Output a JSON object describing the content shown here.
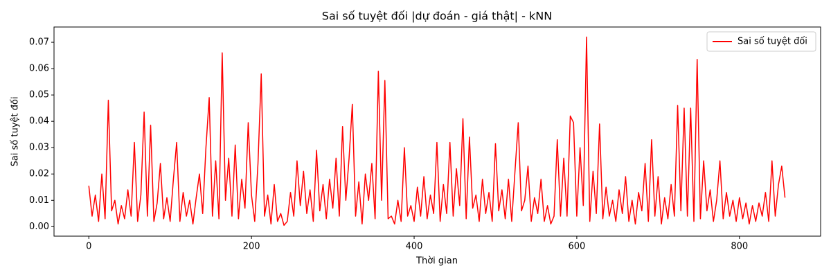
{
  "chart_data": {
    "type": "line",
    "title": "Sai số tuyệt đối |dự đoán - giá thật| - kNN",
    "xlabel": "Thời gian",
    "ylabel": "Sai số tuyệt đối",
    "legend": "upper right",
    "xlim": [
      -42.8,
      899.8
    ],
    "ylim": [
      -0.0036,
      0.0758
    ],
    "xticks": [
      0,
      200,
      400,
      600,
      800
    ],
    "yticks": [
      {
        "value": 0,
        "label": "0.00"
      },
      {
        "value": 0.01,
        "label": "0.01"
      },
      {
        "value": 0.02,
        "label": "0.02"
      },
      {
        "value": 0.03,
        "label": "0.03"
      },
      {
        "value": 0.04,
        "label": "0.04"
      },
      {
        "value": 0.05,
        "label": "0.05"
      },
      {
        "value": 0.06,
        "label": "0.06"
      },
      {
        "value": 0.07,
        "label": "0.07"
      }
    ],
    "x": [
      0,
      4,
      8,
      12,
      16,
      20,
      24,
      28,
      32,
      36,
      40,
      44,
      48,
      52,
      56,
      60,
      64,
      68,
      72,
      76,
      80,
      84,
      88,
      92,
      96,
      100,
      104,
      108,
      112,
      116,
      120,
      124,
      128,
      132,
      136,
      140,
      144,
      148,
      152,
      156,
      160,
      164,
      168,
      172,
      176,
      180,
      184,
      188,
      192,
      196,
      200,
      204,
      208,
      212,
      216,
      220,
      224,
      228,
      232,
      236,
      240,
      244,
      248,
      252,
      256,
      260,
      264,
      268,
      272,
      276,
      280,
      284,
      288,
      292,
      296,
      300,
      304,
      308,
      312,
      316,
      320,
      324,
      328,
      332,
      336,
      340,
      344,
      348,
      352,
      356,
      360,
      364,
      368,
      372,
      376,
      380,
      384,
      388,
      392,
      396,
      400,
      404,
      408,
      412,
      416,
      420,
      424,
      428,
      432,
      436,
      440,
      444,
      448,
      452,
      456,
      460,
      464,
      468,
      472,
      476,
      480,
      484,
      488,
      492,
      496,
      500,
      504,
      508,
      512,
      516,
      520,
      524,
      528,
      532,
      536,
      540,
      544,
      548,
      552,
      556,
      560,
      564,
      568,
      572,
      576,
      580,
      584,
      588,
      592,
      596,
      600,
      604,
      608,
      612,
      616,
      620,
      624,
      628,
      632,
      636,
      640,
      644,
      648,
      652,
      656,
      660,
      664,
      668,
      672,
      676,
      680,
      684,
      688,
      692,
      696,
      700,
      704,
      708,
      712,
      716,
      720,
      724,
      728,
      732,
      736,
      740,
      744,
      748,
      752,
      756,
      760,
      764,
      768,
      772,
      776,
      780,
      784,
      788,
      792,
      796,
      800,
      804,
      808,
      812,
      816,
      820,
      824,
      828,
      832,
      836,
      840,
      844,
      848,
      852,
      856
    ],
    "series": [
      {
        "name": "Sai số tuyệt đối",
        "color": "#ff0000",
        "values": [
          0.0155,
          0.004,
          0.012,
          0.002,
          0.02,
          0.003,
          0.048,
          0.006,
          0.01,
          0.001,
          0.008,
          0.003,
          0.014,
          0.004,
          0.032,
          0.002,
          0.012,
          0.0435,
          0.004,
          0.0385,
          0.002,
          0.009,
          0.024,
          0.003,
          0.011,
          0.002,
          0.018,
          0.032,
          0.002,
          0.013,
          0.004,
          0.01,
          0.001,
          0.011,
          0.02,
          0.005,
          0.03,
          0.049,
          0.004,
          0.025,
          0.003,
          0.066,
          0.01,
          0.026,
          0.004,
          0.031,
          0.003,
          0.018,
          0.007,
          0.0395,
          0.012,
          0.002,
          0.024,
          0.058,
          0.004,
          0.012,
          0.001,
          0.016,
          0.002,
          0.005,
          0.0005,
          0.002,
          0.013,
          0.004,
          0.025,
          0.008,
          0.021,
          0.005,
          0.014,
          0.002,
          0.029,
          0.006,
          0.016,
          0.003,
          0.018,
          0.007,
          0.026,
          0.004,
          0.038,
          0.01,
          0.026,
          0.0465,
          0.004,
          0.017,
          0.001,
          0.02,
          0.01,
          0.024,
          0.003,
          0.059,
          0.01,
          0.0555,
          0.003,
          0.004,
          0.001,
          0.01,
          0.002,
          0.03,
          0.004,
          0.008,
          0.002,
          0.015,
          0.004,
          0.019,
          0.003,
          0.012,
          0.005,
          0.032,
          0.002,
          0.016,
          0.005,
          0.032,
          0.004,
          0.022,
          0.008,
          0.041,
          0.003,
          0.034,
          0.007,
          0.012,
          0.002,
          0.018,
          0.005,
          0.013,
          0.002,
          0.0315,
          0.006,
          0.014,
          0.003,
          0.018,
          0.002,
          0.021,
          0.0395,
          0.006,
          0.01,
          0.023,
          0.002,
          0.011,
          0.005,
          0.018,
          0.002,
          0.008,
          0.001,
          0.004,
          0.033,
          0.004,
          0.026,
          0.004,
          0.042,
          0.0395,
          0.004,
          0.03,
          0.008,
          0.072,
          0.002,
          0.021,
          0.005,
          0.039,
          0.003,
          0.015,
          0.004,
          0.01,
          0.002,
          0.014,
          0.005,
          0.019,
          0.002,
          0.01,
          0.001,
          0.013,
          0.006,
          0.024,
          0.002,
          0.033,
          0.004,
          0.019,
          0.001,
          0.011,
          0.003,
          0.016,
          0.004,
          0.046,
          0.006,
          0.045,
          0.004,
          0.045,
          0.002,
          0.0635,
          0.003,
          0.025,
          0.006,
          0.014,
          0.002,
          0.01,
          0.025,
          0.003,
          0.013,
          0.004,
          0.01,
          0.002,
          0.011,
          0.003,
          0.009,
          0.001,
          0.008,
          0.002,
          0.009,
          0.004,
          0.013,
          0.002,
          0.025,
          0.004,
          0.016,
          0.023,
          0.011
        ]
      }
    ]
  }
}
